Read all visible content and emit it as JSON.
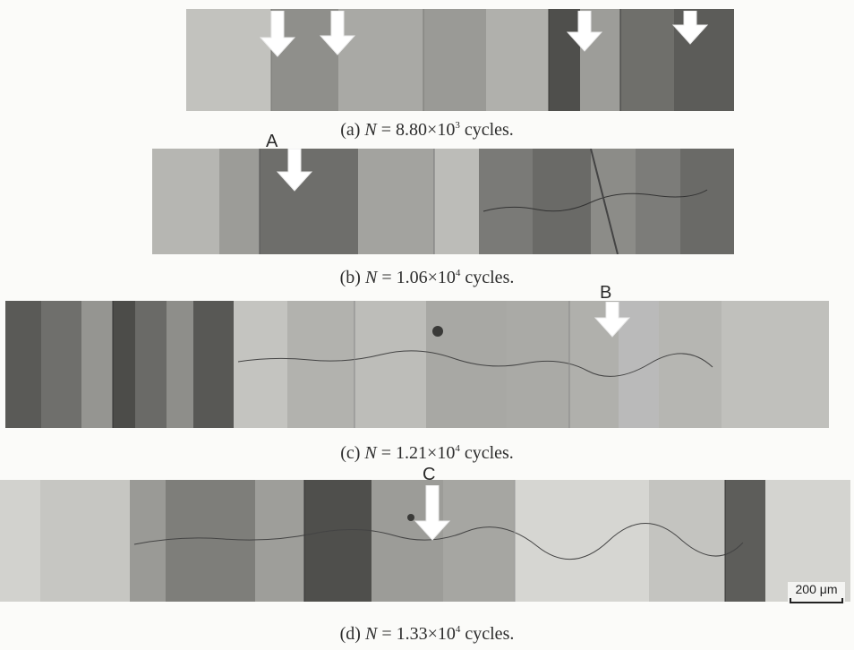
{
  "figure": {
    "panels": [
      {
        "caption_prefix": "(a)",
        "variable": "N",
        "equals": "=",
        "mantissa": "8.80",
        "times": "×",
        "base": "10",
        "exponent": "3",
        "unit": "cycles."
      },
      {
        "caption_prefix": "(b)",
        "variable": "N",
        "equals": "=",
        "mantissa": "1.06",
        "times": "×",
        "base": "10",
        "exponent": "4",
        "unit": "cycles."
      },
      {
        "caption_prefix": "(c)",
        "variable": "N",
        "equals": "=",
        "mantissa": "1.21",
        "times": "×",
        "base": "10",
        "exponent": "4",
        "unit": "cycles."
      },
      {
        "caption_prefix": "(d)",
        "variable": "N",
        "equals": "=",
        "mantissa": "1.33",
        "times": "×",
        "base": "10",
        "exponent": "4",
        "unit": "cycles."
      }
    ],
    "markers": {
      "a": "A",
      "b": "B",
      "c": "C"
    },
    "scale_bar": "200 μm"
  }
}
